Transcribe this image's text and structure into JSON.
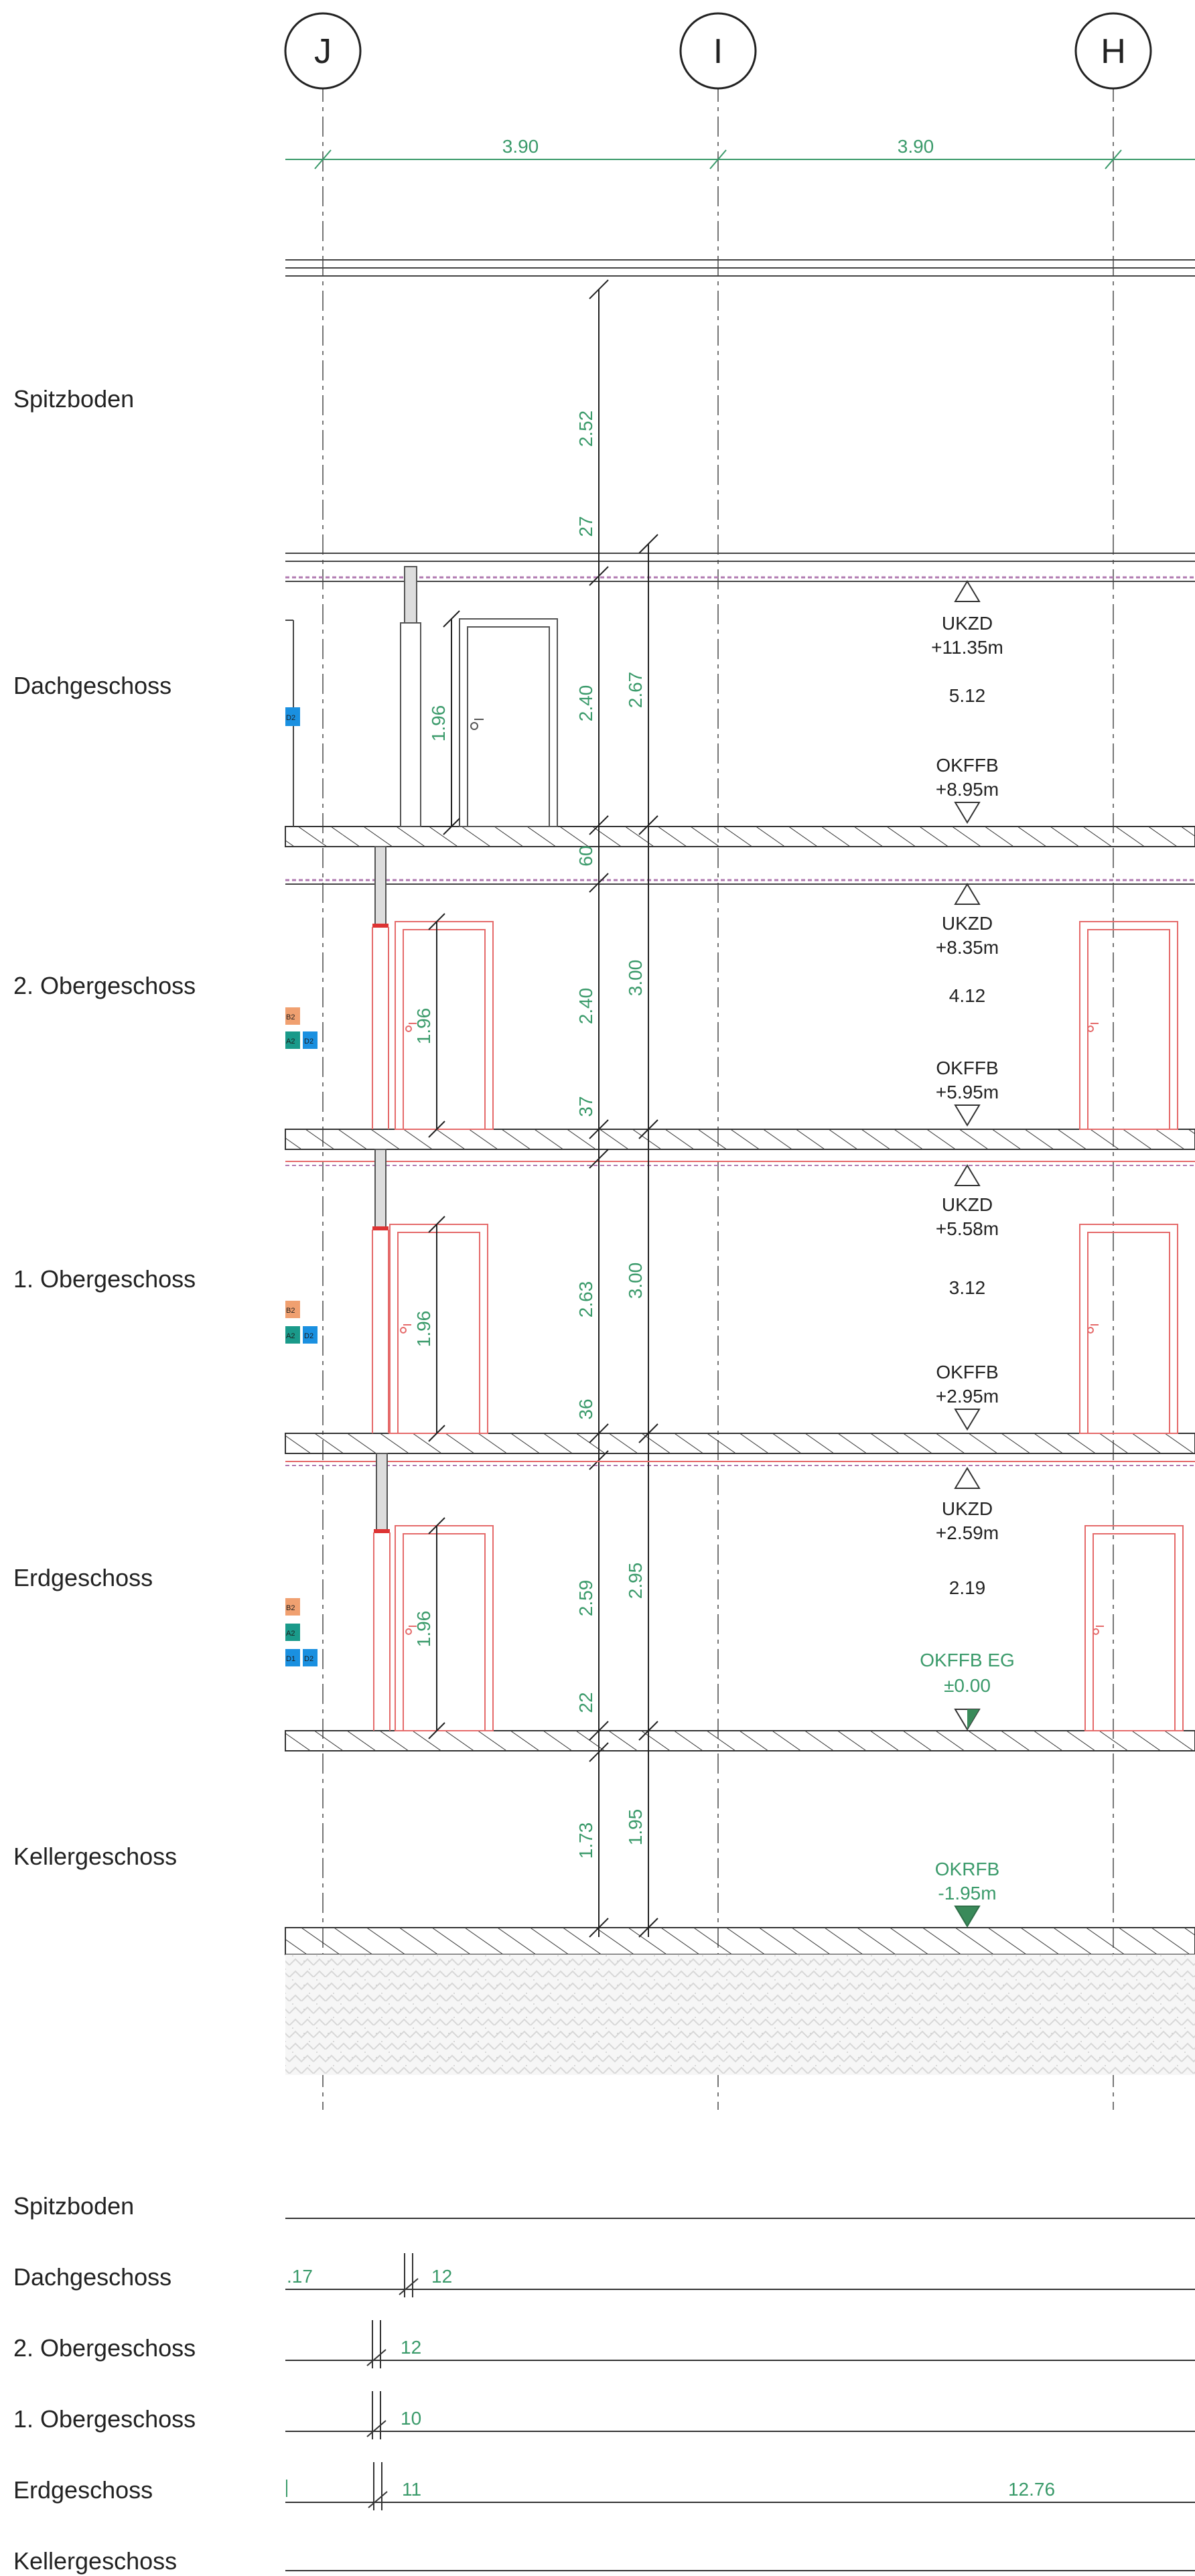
{
  "axes": {
    "j": "J",
    "i": "I",
    "h": "H",
    "span_j_i": "3.90",
    "span_i_h": "3.90"
  },
  "floors": {
    "spitzboden": "Spitzboden",
    "dachgeschoss": "Dachgeschoss",
    "og2": "2. Obergeschoss",
    "og1": "1. Obergeschoss",
    "erdgeschoss": "Erdgeschoss",
    "keller": "Kellergeschoss"
  },
  "dimensions": {
    "spitz_height": "2.52",
    "dach_slab": "27",
    "dach_clear": "2.40",
    "dach_total": "2.67",
    "dach_door": "1.96",
    "og2_slab": "60",
    "og2_clear": "2.40",
    "og2_total": "3.00",
    "og2_door": "1.96",
    "og1_slab": "37",
    "og1_clear": "2.63",
    "og1_total": "3.00",
    "og1_door": "1.96",
    "eg_slab": "36",
    "eg_clear": "2.59",
    "eg_total": "2.95",
    "eg_door": "1.96",
    "kg_slab": "22",
    "kg_clear": "1.73",
    "kg_total": "1.95"
  },
  "levels": {
    "dach_ukzd": "UKZD",
    "dach_ukzd_val": "+11.35m",
    "dach_room": "5.12",
    "dach_okffb": "OKFFB",
    "dach_okffb_val": "+8.95m",
    "og2_ukzd": "UKZD",
    "og2_ukzd_val": "+8.35m",
    "og2_room": "4.12",
    "og2_okffb": "OKFFB",
    "og2_okffb_val": "+5.95m",
    "og1_ukzd": "UKZD",
    "og1_ukzd_val": "+5.58m",
    "og1_room": "3.12",
    "og1_okffb": "OKFFB",
    "og1_okffb_val": "+2.95m",
    "eg_ukzd": "UKZD",
    "eg_ukzd_val": "+2.59m",
    "eg_room": "2.19",
    "eg_okffb": "OKFFB EG",
    "eg_okffb_val": "±0.00",
    "kg_okrfb": "OKRFB",
    "kg_okrfb_val": "-1.95m"
  },
  "tags": {
    "dach": [
      "D2"
    ],
    "og2": [
      "B2",
      "A2",
      "D2"
    ],
    "og1": [
      "B2",
      "A2",
      "D2"
    ],
    "eg": [
      "B2",
      "A2",
      "D1",
      "D2"
    ]
  },
  "lower_section": {
    "floors": [
      "Spitzboden",
      "Dachgeschoss",
      "2. Obergeschoss",
      "1. Obergeschoss",
      "Erdgeschoss",
      "Kellergeschoss"
    ],
    "dach_left": ".17",
    "dach_right": "12",
    "og2_right": "12",
    "og1_right": "10",
    "eg_right": "11",
    "eg_total": "12.76"
  },
  "colors": {
    "dim_green": "#3a9a6a",
    "door_red": "#e56a6a",
    "tag_orange": "#f0a070",
    "tag_teal": "#1a9a8a",
    "tag_blue": "#1a90e0",
    "level_fill_green": "#3a8a5a"
  }
}
